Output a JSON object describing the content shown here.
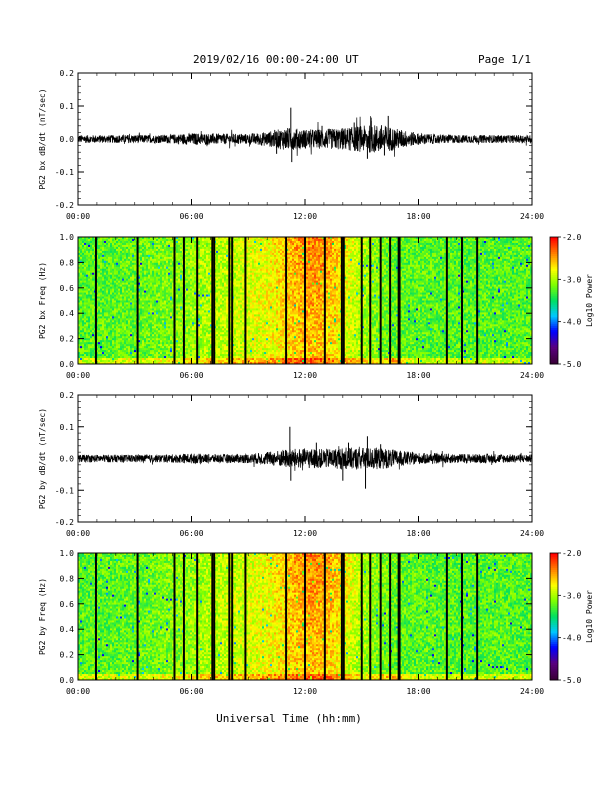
{
  "header": {
    "title": "2019/02/16  00:00-24:00 UT",
    "page": "Page 1/1"
  },
  "footer": {
    "xlabel": "Universal Time (hh:mm)"
  },
  "colors": {
    "line": "#000000",
    "colormap": [
      "#3a003a",
      "#5a0080",
      "#0000ff",
      "#00c8ff",
      "#00e060",
      "#80ff00",
      "#ffff00",
      "#ff8000",
      "#ff0000"
    ]
  },
  "chart_data": [
    {
      "type": "line",
      "id": "bx_wave",
      "ylabel": "PG2 bx dB/dt (nT/sec)",
      "xlim": [
        0,
        24
      ],
      "ylim": [
        -0.2,
        0.2
      ],
      "xticks": [
        "00:00",
        "06:00",
        "12:00",
        "18:00",
        "24:00"
      ],
      "yticks": [
        "0.2",
        "0.1",
        "0.0",
        "-0.1",
        "-0.2"
      ],
      "ytick_values": [
        0.2,
        0.1,
        0.0,
        -0.1,
        -0.2
      ],
      "envelope": {
        "hours": [
          0,
          1,
          2,
          3,
          4,
          5,
          6,
          7,
          8,
          9,
          10,
          11,
          12,
          13,
          14,
          15,
          16,
          17,
          18,
          19,
          20,
          21,
          22,
          23,
          24
        ],
        "amplitude": [
          0.012,
          0.012,
          0.012,
          0.013,
          0.012,
          0.014,
          0.018,
          0.017,
          0.016,
          0.016,
          0.022,
          0.035,
          0.03,
          0.03,
          0.034,
          0.04,
          0.045,
          0.03,
          0.018,
          0.014,
          0.013,
          0.012,
          0.012,
          0.012,
          0.012
        ]
      },
      "spikes": [
        {
          "t": 11.25,
          "v": 0.095
        },
        {
          "t": 11.3,
          "v": -0.07
        },
        {
          "t": 12.9,
          "v": 0.04
        },
        {
          "t": 14.6,
          "v": 0.05
        },
        {
          "t": 15.3,
          "v": -0.06
        },
        {
          "t": 16.4,
          "v": 0.07
        },
        {
          "t": 16.2,
          "v": -0.05
        },
        {
          "t": 10.5,
          "v": -0.045
        },
        {
          "t": 15.5,
          "v": 0.055
        }
      ]
    },
    {
      "type": "heatmap",
      "id": "bx_spec",
      "ylabel": "PG2 bx Freq (Hz)",
      "xlim": [
        0,
        24
      ],
      "ylim": [
        0,
        1.0
      ],
      "xticks": [
        "00:00",
        "06:00",
        "12:00",
        "18:00",
        "24:00"
      ],
      "yticks": [
        "1.0",
        "0.8",
        "0.6",
        "0.4",
        "0.2",
        "0.0"
      ],
      "ytick_values": [
        1.0,
        0.8,
        0.6,
        0.4,
        0.2,
        0.0
      ],
      "colorbar": {
        "label": "Log10 Power",
        "range": [
          -5.0,
          -2.0
        ],
        "ticks": [
          "-2.0",
          "-3.0",
          "-4.0",
          "-5.0"
        ],
        "tick_values": [
          -2.0,
          -3.0,
          -4.0,
          -5.0
        ]
      },
      "gaps_hours": [
        0.95,
        3.15,
        5.1,
        5.6,
        6.3,
        7.1,
        7.2,
        8.0,
        8.15,
        8.85,
        11.0,
        12.0,
        13.05,
        13.95,
        14.05,
        15.0,
        15.45,
        16.0,
        16.5,
        16.95,
        17.0,
        19.5,
        20.3,
        21.1
      ]
    },
    {
      "type": "line",
      "id": "by_wave",
      "ylabel": "PG2 by dB/dt (nT/sec)",
      "xlim": [
        0,
        24
      ],
      "ylim": [
        -0.2,
        0.2
      ],
      "xticks": [
        "00:00",
        "06:00",
        "12:00",
        "18:00",
        "24:00"
      ],
      "yticks": [
        "0.2",
        "0.1",
        "0.0",
        "-0.1",
        "-0.2"
      ],
      "ytick_values": [
        0.2,
        0.1,
        0.0,
        -0.1,
        -0.2
      ],
      "envelope": {
        "hours": [
          0,
          1,
          2,
          3,
          4,
          5,
          6,
          7,
          8,
          9,
          10,
          11,
          12,
          13,
          14,
          15,
          16,
          17,
          18,
          19,
          20,
          21,
          22,
          23,
          24
        ],
        "amplitude": [
          0.012,
          0.012,
          0.012,
          0.012,
          0.012,
          0.013,
          0.016,
          0.014,
          0.014,
          0.015,
          0.02,
          0.03,
          0.032,
          0.03,
          0.034,
          0.035,
          0.034,
          0.025,
          0.018,
          0.016,
          0.015,
          0.014,
          0.015,
          0.013,
          0.012
        ]
      },
      "spikes": [
        {
          "t": 11.2,
          "v": 0.1
        },
        {
          "t": 11.25,
          "v": -0.07
        },
        {
          "t": 12.6,
          "v": 0.05
        },
        {
          "t": 14.0,
          "v": -0.07
        },
        {
          "t": 15.2,
          "v": -0.095
        },
        {
          "t": 15.3,
          "v": 0.07
        },
        {
          "t": 16.0,
          "v": 0.045
        },
        {
          "t": 14.3,
          "v": 0.05
        }
      ]
    },
    {
      "type": "heatmap",
      "id": "by_spec",
      "ylabel": "PG2 by Freq (Hz)",
      "xlim": [
        0,
        24
      ],
      "ylim": [
        0,
        1.0
      ],
      "xticks": [
        "00:00",
        "06:00",
        "12:00",
        "18:00",
        "24:00"
      ],
      "yticks": [
        "1.0",
        "0.8",
        "0.6",
        "0.4",
        "0.2",
        "0.0"
      ],
      "ytick_values": [
        1.0,
        0.8,
        0.6,
        0.4,
        0.2,
        0.0
      ],
      "colorbar": {
        "label": "Log10 Power",
        "range": [
          -5.0,
          -2.0
        ],
        "ticks": [
          "-2.0",
          "-3.0",
          "-4.0",
          "-5.0"
        ],
        "tick_values": [
          -2.0,
          -3.0,
          -4.0,
          -5.0
        ]
      },
      "gaps_hours": [
        0.95,
        3.15,
        5.1,
        5.6,
        6.3,
        7.1,
        7.2,
        8.0,
        8.15,
        8.85,
        11.0,
        12.0,
        13.05,
        13.95,
        14.05,
        15.0,
        15.45,
        16.0,
        16.5,
        16.95,
        17.0,
        19.5,
        20.3,
        21.1
      ]
    }
  ]
}
